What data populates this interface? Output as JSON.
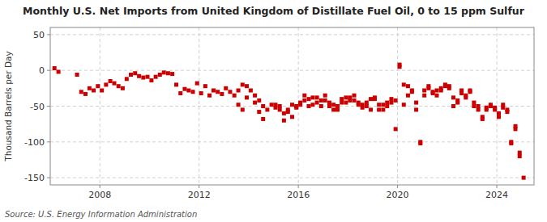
{
  "chart_data": {
    "type": "scatter",
    "title": "Monthly U.S. Net Imports from United Kingdom of Distillate Fuel Oil, 0 to 15 ppm Sulfur",
    "ylabel": "Thousand Barrels per Day",
    "annotations": [
      "Source: U.S. Energy Information Administration"
    ],
    "color": "#cc0000",
    "marker": "square",
    "grid": true,
    "xlim": [
      2006.0,
      2025.5
    ],
    "xticks": [
      2008,
      2012,
      2016,
      2020,
      2024
    ],
    "ylim": [
      -160,
      60
    ],
    "yticks": [
      -150,
      -100,
      -50,
      0,
      50
    ],
    "x": [
      2006.17,
      2006.33,
      2007.08,
      2007.25,
      2007.42,
      2007.58,
      2007.75,
      2007.92,
      2008.08,
      2008.25,
      2008.42,
      2008.58,
      2008.75,
      2008.92,
      2009.08,
      2009.25,
      2009.42,
      2009.58,
      2009.75,
      2009.92,
      2010.08,
      2010.25,
      2010.42,
      2010.58,
      2010.75,
      2010.92,
      2011.08,
      2011.25,
      2011.42,
      2011.58,
      2011.75,
      2011.92,
      2012.08,
      2012.25,
      2012.42,
      2012.58,
      2012.75,
      2012.92,
      2013.08,
      2013.25,
      2013.42,
      2013.58,
      2013.75,
      2013.92,
      2014.08,
      2014.25,
      2014.42,
      2014.58,
      2014.75,
      2014.92,
      2015.08,
      2015.25,
      2015.42,
      2015.58,
      2015.75,
      2015.92,
      2016.08,
      2016.25,
      2016.42,
      2016.58,
      2016.75,
      2016.92,
      2017.08,
      2017.25,
      2017.42,
      2017.58,
      2017.75,
      2017.92,
      2018.08,
      2018.25,
      2018.42,
      2018.58,
      2018.75,
      2018.92,
      2019.08,
      2019.25,
      2019.42,
      2019.58,
      2019.75,
      2019.92,
      2020.08,
      2020.25,
      2020.42,
      2020.58,
      2020.75,
      2020.92,
      2021.08,
      2021.25,
      2021.42,
      2021.58,
      2021.75,
      2021.92,
      2022.08,
      2022.25,
      2022.42,
      2022.58,
      2022.75,
      2022.92,
      2023.08,
      2023.25,
      2023.42,
      2023.58,
      2023.75,
      2023.92,
      2024.08,
      2024.25,
      2024.42,
      2024.58,
      2024.75,
      2024.92,
      2025.08,
      2013.58,
      2013.75,
      2013.92,
      2014.25,
      2014.42,
      2014.58,
      2015.08,
      2015.25,
      2015.42,
      2015.58,
      2015.75,
      2015.92,
      2016.08,
      2016.25,
      2016.42,
      2016.58,
      2016.75,
      2016.92,
      2017.08,
      2017.25,
      2017.42,
      2017.58,
      2017.75,
      2017.92,
      2018.08,
      2018.25,
      2018.42,
      2018.58,
      2018.75,
      2018.92,
      2019.08,
      2019.25,
      2019.42,
      2019.58,
      2019.75,
      2019.92,
      2020.08,
      2020.25,
      2020.42,
      2020.58,
      2020.75,
      2020.92,
      2021.08,
      2021.25,
      2021.42,
      2021.58,
      2021.75,
      2021.92,
      2022.08,
      2022.25,
      2022.42,
      2022.58,
      2022.75,
      2022.92,
      2023.08,
      2023.25,
      2023.42,
      2023.58,
      2023.75,
      2023.92,
      2024.08,
      2024.25,
      2024.42,
      2024.58,
      2024.75,
      2024.92
    ],
    "values": [
      3,
      -2,
      -6,
      -30,
      -33,
      -25,
      -28,
      -22,
      -28,
      -20,
      -15,
      -18,
      -22,
      -25,
      -12,
      -6,
      -4,
      -8,
      -10,
      -9,
      -14,
      -9,
      -6,
      -3,
      -4,
      -5,
      -20,
      -32,
      -26,
      -28,
      -30,
      -18,
      -32,
      -22,
      -35,
      -28,
      -30,
      -33,
      -25,
      -30,
      -35,
      -28,
      -20,
      -22,
      -28,
      -35,
      -42,
      -50,
      -55,
      -48,
      -52,
      -50,
      -60,
      -58,
      -48,
      -52,
      -45,
      -35,
      -40,
      -48,
      -38,
      -42,
      -35,
      -45,
      -55,
      -50,
      -45,
      -38,
      -42,
      -35,
      -45,
      -48,
      -50,
      -40,
      -40,
      -55,
      -48,
      -50,
      -45,
      -42,
      5,
      -20,
      -35,
      -30,
      -45,
      -102,
      -35,
      -25,
      -30,
      -35,
      -28,
      -22,
      -25,
      -38,
      -42,
      -28,
      -35,
      -30,
      -45,
      -50,
      -65,
      -55,
      -48,
      -52,
      -60,
      -48,
      -55,
      -102,
      -82,
      -120,
      -150,
      -48,
      -55,
      -38,
      -45,
      -58,
      -68,
      -48,
      -55,
      -70,
      -55,
      -65,
      -50,
      -48,
      -42,
      -50,
      -38,
      -45,
      -50,
      -42,
      -50,
      -48,
      -55,
      -40,
      -45,
      -38,
      -42,
      -48,
      -52,
      -45,
      -55,
      -38,
      -48,
      -55,
      -45,
      -40,
      -82,
      8,
      -48,
      -22,
      -28,
      -55,
      -100,
      -28,
      -22,
      -32,
      -28,
      -25,
      -20,
      -22,
      -50,
      -45,
      -32,
      -38,
      -28,
      -50,
      -55,
      -68,
      -52,
      -50,
      -55,
      -65,
      -52,
      -58,
      -100,
      -78,
      -115
    ]
  }
}
